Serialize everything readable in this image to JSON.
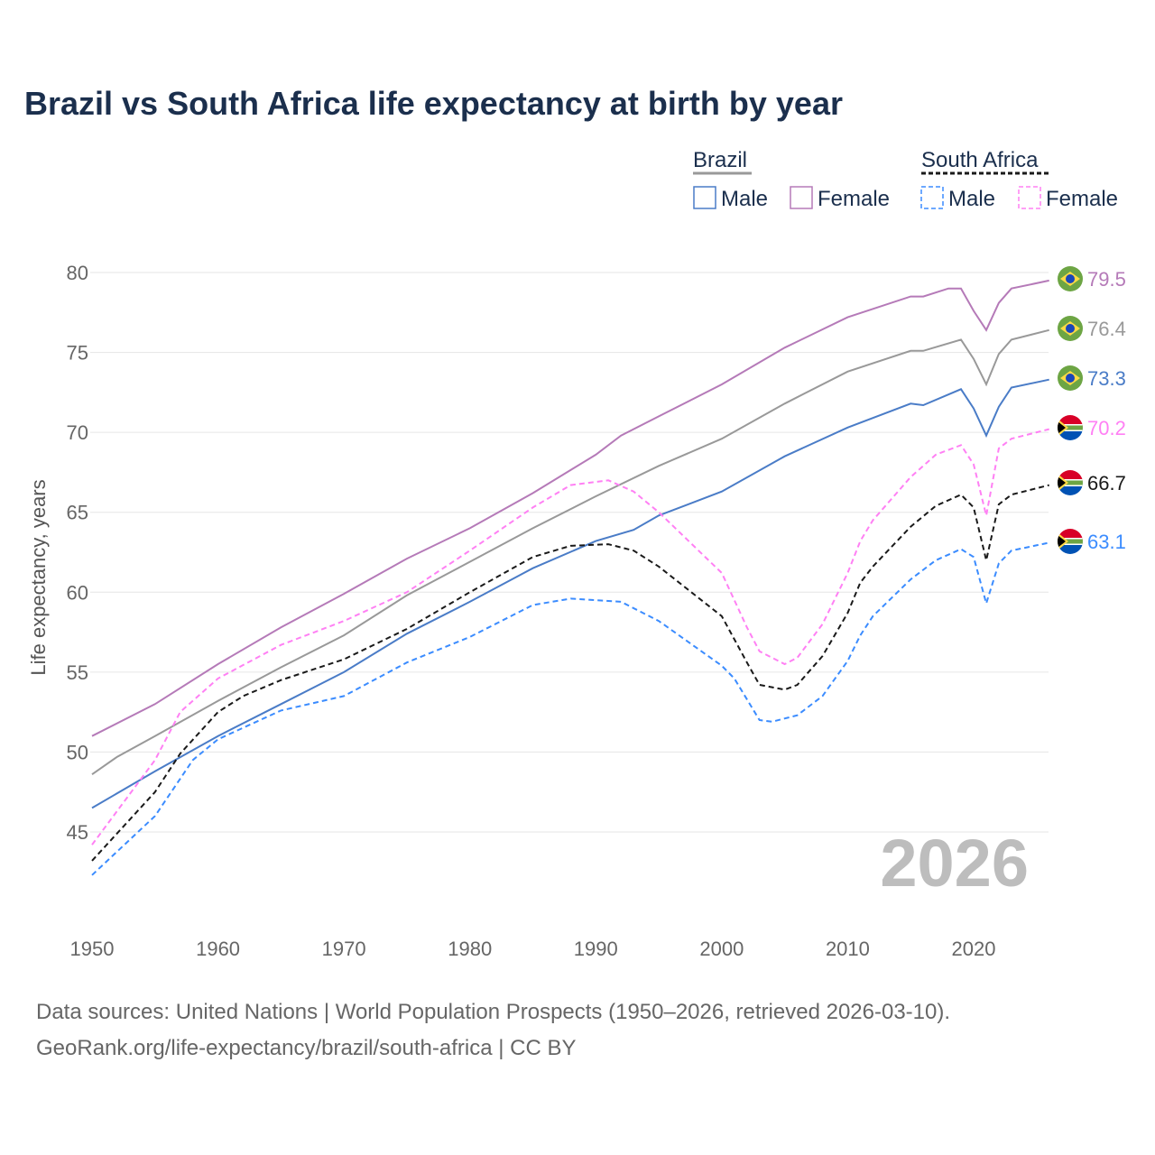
{
  "chart_data": {
    "type": "line",
    "title": "Brazil vs South Africa life expectancy at birth by year",
    "xlabel": "",
    "ylabel": "Life expectancy, years",
    "xlim": [
      1950,
      2026
    ],
    "ylim": [
      42,
      81
    ],
    "xticks": [
      1950,
      1960,
      1970,
      1980,
      1990,
      2000,
      2010,
      2020
    ],
    "yticks": [
      45,
      50,
      55,
      60,
      65,
      70,
      75,
      80
    ],
    "grid": true,
    "watermark_year": "2026",
    "legend": {
      "placement": "top-right",
      "groups": [
        {
          "name": "Brazil",
          "items": [
            "Male",
            "Female"
          ]
        },
        {
          "name": "South Africa",
          "items": [
            "Male",
            "Female"
          ]
        }
      ]
    },
    "series": [
      {
        "name": "Brazil Female",
        "country": "brazil",
        "color": "#b57ab8",
        "dashed": false,
        "end_label": "79.5",
        "x": [
          1950,
          1955,
          1960,
          1965,
          1970,
          1975,
          1980,
          1985,
          1990,
          1992,
          1995,
          2000,
          2005,
          2010,
          2015,
          2016,
          2018,
          2019,
          2020,
          2021,
          2022,
          2023,
          2026
        ],
        "y": [
          51.0,
          53.0,
          55.5,
          57.8,
          59.9,
          62.1,
          64.0,
          66.2,
          68.6,
          69.8,
          71.0,
          73.0,
          75.3,
          77.2,
          78.5,
          78.5,
          79.0,
          79.0,
          77.6,
          76.4,
          78.1,
          79.0,
          79.5
        ]
      },
      {
        "name": "Brazil Total",
        "country": "brazil",
        "color": "#999999",
        "dashed": false,
        "end_label": "76.4",
        "x": [
          1950,
          1952,
          1955,
          1960,
          1965,
          1970,
          1975,
          1980,
          1985,
          1990,
          1995,
          2000,
          2005,
          2010,
          2015,
          2016,
          2019,
          2020,
          2021,
          2022,
          2023,
          2026
        ],
        "y": [
          48.6,
          49.7,
          51.0,
          53.2,
          55.3,
          57.3,
          59.8,
          61.9,
          64.0,
          66.0,
          67.9,
          69.6,
          71.8,
          73.8,
          75.1,
          75.1,
          75.8,
          74.6,
          73.0,
          74.9,
          75.8,
          76.4
        ]
      },
      {
        "name": "Brazil Male",
        "country": "brazil",
        "color": "#4a7cc7",
        "dashed": false,
        "end_label": "73.3",
        "x": [
          1950,
          1955,
          1960,
          1965,
          1970,
          1975,
          1980,
          1985,
          1990,
          1993,
          1995,
          2000,
          2005,
          2010,
          2015,
          2016,
          2019,
          2020,
          2021,
          2022,
          2023,
          2026
        ],
        "y": [
          46.5,
          48.8,
          51.0,
          53.0,
          55.0,
          57.4,
          59.4,
          61.5,
          63.2,
          63.9,
          64.8,
          66.3,
          68.5,
          70.3,
          71.8,
          71.7,
          72.7,
          71.5,
          69.8,
          71.6,
          72.8,
          73.3
        ]
      },
      {
        "name": "South Africa Female",
        "country": "south-africa",
        "color": "#ff80f4",
        "dashed": true,
        "end_label": "70.2",
        "x": [
          1950,
          1955,
          1957,
          1960,
          1965,
          1970,
          1975,
          1980,
          1985,
          1988,
          1991,
          1993,
          1995,
          2000,
          2002,
          2003,
          2005,
          2006,
          2008,
          2010,
          2011,
          2012,
          2015,
          2017,
          2019,
          2020,
          2021,
          2022,
          2023,
          2026
        ],
        "y": [
          44.2,
          49.5,
          52.5,
          54.6,
          56.7,
          58.2,
          60.0,
          62.6,
          65.3,
          66.7,
          67.0,
          66.3,
          65.0,
          61.2,
          57.8,
          56.3,
          55.5,
          55.9,
          58.0,
          61.2,
          63.2,
          64.5,
          67.2,
          68.6,
          69.2,
          68.0,
          64.8,
          69.0,
          69.6,
          70.2
        ]
      },
      {
        "name": "South Africa Total",
        "country": "south-africa",
        "color": "#1a1a1a",
        "dashed": true,
        "end_label": "66.7",
        "x": [
          1950,
          1955,
          1957,
          1960,
          1962,
          1965,
          1970,
          1975,
          1980,
          1985,
          1988,
          1991,
          1993,
          1995,
          2000,
          2002,
          2003,
          2005,
          2006,
          2008,
          2010,
          2011,
          2012,
          2015,
          2017,
          2019,
          2020,
          2021,
          2022,
          2023,
          2026
        ],
        "y": [
          43.2,
          47.5,
          49.9,
          52.5,
          53.5,
          54.5,
          55.8,
          57.7,
          60.0,
          62.2,
          62.9,
          63.0,
          62.6,
          61.6,
          58.5,
          55.6,
          54.2,
          53.9,
          54.2,
          56.0,
          58.7,
          60.6,
          61.6,
          64.1,
          65.4,
          66.1,
          65.3,
          62.0,
          65.5,
          66.1,
          66.7
        ]
      },
      {
        "name": "South Africa Male",
        "country": "south-africa",
        "color": "#3b8cff",
        "dashed": true,
        "end_label": "63.1",
        "x": [
          1950,
          1955,
          1958,
          1960,
          1965,
          1970,
          1975,
          1980,
          1985,
          1988,
          1990,
          1992,
          1995,
          2000,
          2001,
          2003,
          2004,
          2006,
          2008,
          2010,
          2011,
          2012,
          2015,
          2017,
          2019,
          2020,
          2021,
          2022,
          2023,
          2026
        ],
        "y": [
          42.3,
          46.0,
          49.5,
          50.8,
          52.6,
          53.5,
          55.6,
          57.2,
          59.2,
          59.6,
          59.5,
          59.4,
          58.2,
          55.4,
          54.6,
          52.0,
          51.9,
          52.3,
          53.5,
          55.7,
          57.3,
          58.5,
          60.8,
          62.0,
          62.7,
          62.2,
          59.3,
          61.8,
          62.6,
          63.1
        ]
      }
    ]
  },
  "source_line1": "Data sources: United Nations | World Population Prospects (1950–2026, retrieved 2026-03-10).",
  "source_line2": "GeoRank.org/life-expectancy/brazil/south-africa | CC BY"
}
